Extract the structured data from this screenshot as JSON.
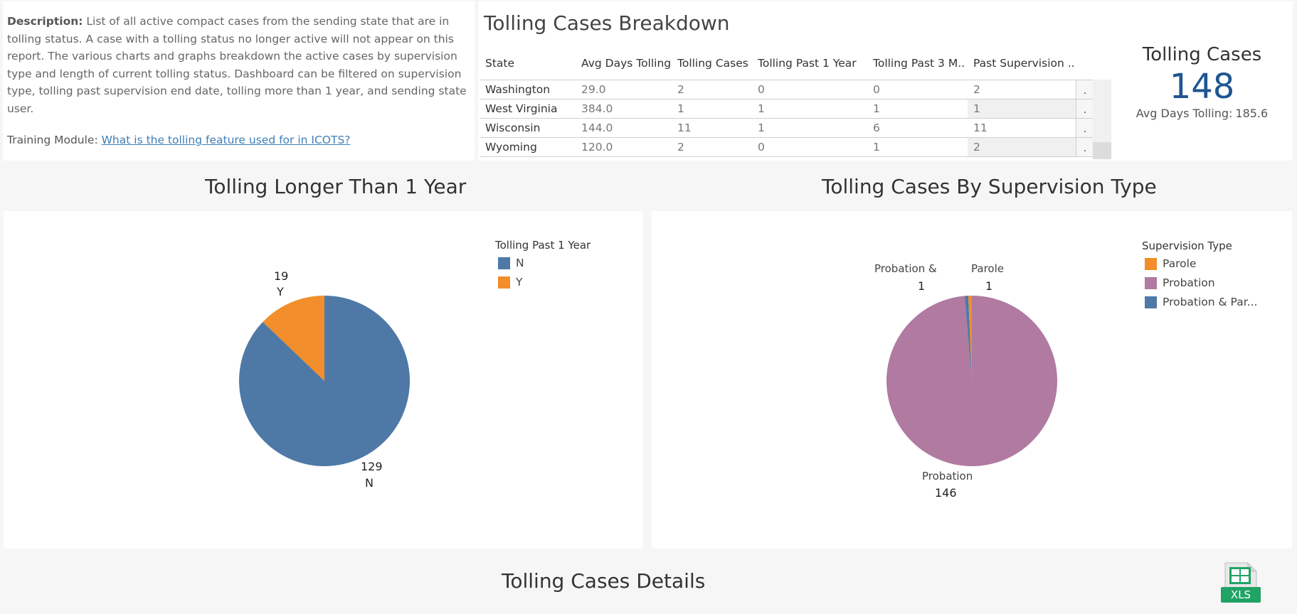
{
  "description": {
    "label": "Description:",
    "text": " List of all active compact cases from the sending state that are in tolling status. A case with a tolling status no longer active will not appear on this report. The various charts and graphs breakdown the active cases by supervision type and length of current tolling status. Dashboard can be filtered on supervision type, tolling past supervision end date, tolling more than 1 year, and sending state user.",
    "training_label": "Training Module:",
    "training_link": "What is the tolling feature used for in ICOTS?"
  },
  "breakdown": {
    "title": "Tolling Cases Breakdown",
    "columns": [
      "State",
      "Avg Days Tolling",
      "Tolling Cases",
      "Tolling Past 1 Year",
      "Tolling Past 3 M..",
      "Past Supervision .."
    ],
    "rows": [
      {
        "state": "Washington",
        "avg": "29.0",
        "cases": "2",
        "past1": "0",
        "past3": "0",
        "pastsup": "2",
        "more": "."
      },
      {
        "state": "West Virginia",
        "avg": "384.0",
        "cases": "1",
        "past1": "1",
        "past3": "1",
        "pastsup": "1",
        "more": "."
      },
      {
        "state": "Wisconsin",
        "avg": "144.0",
        "cases": "11",
        "past1": "1",
        "past3": "6",
        "pastsup": "11",
        "more": "."
      },
      {
        "state": "Wyoming",
        "avg": "120.0",
        "cases": "2",
        "past1": "0",
        "past3": "1",
        "pastsup": "2",
        "more": "."
      }
    ]
  },
  "kpi": {
    "title": "Tolling Cases",
    "value": "148",
    "sub_label": "Avg Days Tolling:",
    "sub_value": "185.6"
  },
  "section1": {
    "title": "Tolling Longer Than 1 Year"
  },
  "section2": {
    "title": "Tolling Cases By Supervision Type"
  },
  "section3": {
    "title": "Tolling Cases Details"
  },
  "xls": {
    "label": "XLS",
    "color": "#21a366"
  },
  "chart_data": [
    {
      "type": "pie",
      "title": "Tolling Longer Than 1 Year",
      "legend_title": "Tolling Past 1 Year",
      "legend_position": "top-right",
      "slices": [
        {
          "name": "N",
          "value": 129,
          "color": "#4e79a7"
        },
        {
          "name": "Y",
          "value": 19,
          "color": "#f28e2b"
        }
      ]
    },
    {
      "type": "pie",
      "title": "Tolling Cases By Supervision Type",
      "legend_title": "Supervision Type",
      "legend_position": "top-right",
      "legend": [
        {
          "name": "Parole",
          "color": "#f28e2b"
        },
        {
          "name": "Probation",
          "color": "#b07aa1"
        },
        {
          "name": "Probation & Par...",
          "color": "#4e79a7"
        }
      ],
      "slices": [
        {
          "name": "Parole",
          "label": "Parole",
          "value": 1,
          "color": "#f28e2b"
        },
        {
          "name": "Probation",
          "label": "Probation",
          "value": 146,
          "color": "#b07aa1"
        },
        {
          "name": "Probation & Parole",
          "label": "Probation &",
          "value": 1,
          "color": "#4e79a7"
        }
      ]
    }
  ]
}
